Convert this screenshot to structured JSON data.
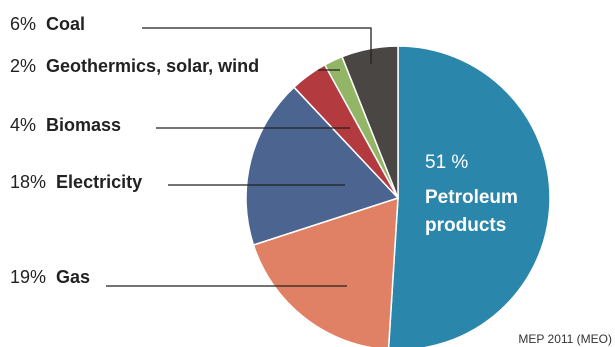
{
  "chart_data": {
    "type": "pie",
    "title": "",
    "slices": [
      {
        "label": "Petroleum products",
        "percent_label": "51 %",
        "value": 51,
        "color": "#2b86ac"
      },
      {
        "label": "Gas",
        "percent_label": "19%",
        "value": 19,
        "color": "#e08064"
      },
      {
        "label": "Electricity",
        "percent_label": "18%",
        "value": 18,
        "color": "#4b6590"
      },
      {
        "label": "Biomass",
        "percent_label": "4%",
        "value": 4,
        "color": "#b33b40"
      },
      {
        "label": "Geothermics, solar, wind",
        "percent_label": "2%",
        "value": 2,
        "color": "#93b566"
      },
      {
        "label": "Coal",
        "percent_label": "6%",
        "value": 6,
        "color": "#4a4644"
      }
    ],
    "inside_label": {
      "percent": "51 %",
      "line1": "Petroleum",
      "line2": "products"
    },
    "source": "MEP 2011 (MEO)"
  }
}
